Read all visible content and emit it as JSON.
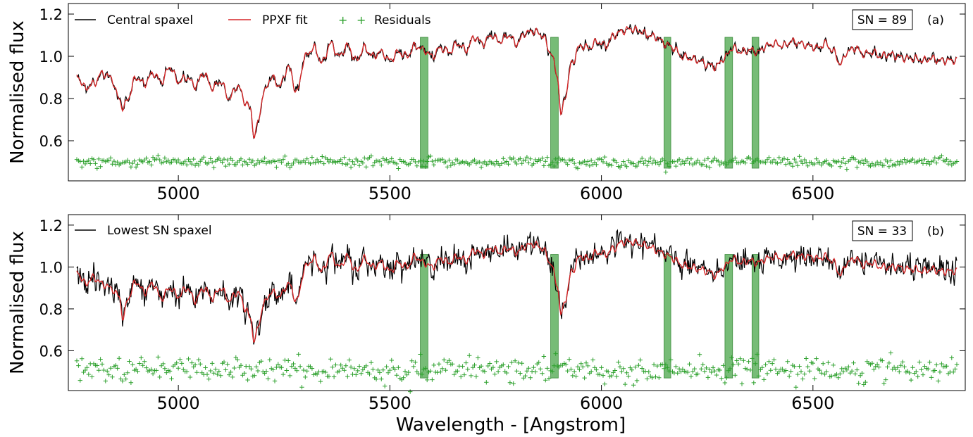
{
  "figure": {
    "xlabel": "Wavelength - [Angstrom]"
  },
  "colors": {
    "spectrum": "#000000",
    "fit": "#d62728",
    "residuals": "#2ca02c",
    "masked_band": "#4aa54a"
  },
  "chart_data": [
    {
      "type": "line",
      "panel_label": "(a)",
      "sn_label": "SN = 89",
      "ylabel": "Normalised flux",
      "xlim": [
        4740,
        6860
      ],
      "ylim": [
        0.41,
        1.25
      ],
      "xticks": [
        5000,
        5500,
        6000,
        6500
      ],
      "yticks": [
        0.6,
        0.8,
        1.0,
        1.2
      ],
      "ytick_labels": [
        "0.6",
        "0.8",
        "1.0",
        "1.2"
      ],
      "legend_position": "top-left",
      "legend": [
        "Central spaxel",
        "PPXF fit",
        "Residuals"
      ],
      "x_range": [
        4760,
        6840
      ],
      "masked_regions": [
        [
          5572,
          5590
        ],
        [
          5880,
          5898
        ],
        [
          6148,
          6164
        ],
        [
          6292,
          6310
        ],
        [
          6356,
          6372
        ]
      ],
      "fit_knots": [
        [
          4760,
          0.91
        ],
        [
          4780,
          0.85
        ],
        [
          4800,
          0.87
        ],
        [
          4820,
          0.92
        ],
        [
          4840,
          0.9
        ],
        [
          4860,
          0.8
        ],
        [
          4870,
          0.75
        ],
        [
          4880,
          0.8
        ],
        [
          4900,
          0.9
        ],
        [
          4920,
          0.87
        ],
        [
          4940,
          0.92
        ],
        [
          4960,
          0.88
        ],
        [
          4980,
          0.95
        ],
        [
          5000,
          0.88
        ],
        [
          5020,
          0.9
        ],
        [
          5040,
          0.86
        ],
        [
          5060,
          0.92
        ],
        [
          5080,
          0.85
        ],
        [
          5100,
          0.88
        ],
        [
          5120,
          0.8
        ],
        [
          5140,
          0.86
        ],
        [
          5160,
          0.78
        ],
        [
          5170,
          0.75
        ],
        [
          5180,
          0.62
        ],
        [
          5190,
          0.7
        ],
        [
          5200,
          0.82
        ],
        [
          5220,
          0.9
        ],
        [
          5240,
          0.86
        ],
        [
          5260,
          0.95
        ],
        [
          5280,
          0.83
        ],
        [
          5300,
          1.0
        ],
        [
          5320,
          1.04
        ],
        [
          5340,
          0.97
        ],
        [
          5360,
          1.06
        ],
        [
          5380,
          1.0
        ],
        [
          5400,
          1.05
        ],
        [
          5420,
          0.98
        ],
        [
          5440,
          1.04
        ],
        [
          5460,
          1.0
        ],
        [
          5480,
          1.02
        ],
        [
          5500,
          0.98
        ],
        [
          5520,
          1.02
        ],
        [
          5540,
          1.0
        ],
        [
          5560,
          1.05
        ],
        [
          5580,
          1.03
        ],
        [
          5600,
          1.0
        ],
        [
          5620,
          1.04
        ],
        [
          5640,
          1.02
        ],
        [
          5660,
          1.06
        ],
        [
          5680,
          1.03
        ],
        [
          5700,
          1.09
        ],
        [
          5720,
          1.06
        ],
        [
          5740,
          1.1
        ],
        [
          5760,
          1.07
        ],
        [
          5780,
          1.1
        ],
        [
          5800,
          1.06
        ],
        [
          5820,
          1.11
        ],
        [
          5840,
          1.12
        ],
        [
          5860,
          1.1
        ],
        [
          5880,
          1.02
        ],
        [
          5895,
          0.92
        ],
        [
          5905,
          0.72
        ],
        [
          5915,
          0.82
        ],
        [
          5930,
          0.97
        ],
        [
          5950,
          1.05
        ],
        [
          5970,
          1.04
        ],
        [
          5990,
          1.07
        ],
        [
          6010,
          1.05
        ],
        [
          6030,
          1.1
        ],
        [
          6050,
          1.12
        ],
        [
          6070,
          1.13
        ],
        [
          6090,
          1.12
        ],
        [
          6110,
          1.1
        ],
        [
          6130,
          1.09
        ],
        [
          6150,
          1.06
        ],
        [
          6170,
          1.04
        ],
        [
          6190,
          1.0
        ],
        [
          6210,
          0.99
        ],
        [
          6230,
          0.98
        ],
        [
          6250,
          0.96
        ],
        [
          6270,
          0.95
        ],
        [
          6290,
          0.99
        ],
        [
          6310,
          1.04
        ],
        [
          6330,
          1.02
        ],
        [
          6350,
          1.03
        ],
        [
          6370,
          1.02
        ],
        [
          6390,
          1.05
        ],
        [
          6410,
          1.06
        ],
        [
          6430,
          1.05
        ],
        [
          6450,
          1.07
        ],
        [
          6470,
          1.06
        ],
        [
          6490,
          1.05
        ],
        [
          6510,
          1.04
        ],
        [
          6530,
          1.06
        ],
        [
          6550,
          1.02
        ],
        [
          6565,
          0.96
        ],
        [
          6580,
          1.02
        ],
        [
          6600,
          1.04
        ],
        [
          6620,
          1.01
        ],
        [
          6640,
          1.02
        ],
        [
          6660,
          1.0
        ],
        [
          6680,
          1.01
        ],
        [
          6700,
          1.0
        ],
        [
          6720,
          0.99
        ],
        [
          6740,
          0.99
        ],
        [
          6760,
          0.98
        ],
        [
          6780,
          0.99
        ],
        [
          6800,
          0.98
        ],
        [
          6820,
          0.98
        ],
        [
          6840,
          0.98
        ]
      ],
      "residual_level": 0.5,
      "residual_scatter": 0.012
    },
    {
      "type": "line",
      "panel_label": "(b)",
      "sn_label": "SN = 33",
      "ylabel": "Normalised flux",
      "xlabel": "Wavelength - [Angstrom]",
      "xlim": [
        4740,
        6860
      ],
      "ylim": [
        0.41,
        1.25
      ],
      "xticks": [
        5000,
        5500,
        6000,
        6500
      ],
      "yticks": [
        0.6,
        0.8,
        1.0,
        1.2
      ],
      "ytick_labels": [
        "0.6",
        "0.8",
        "1.0",
        "1.2"
      ],
      "legend_position": "top-left",
      "legend": [
        "Lowest SN spaxel"
      ],
      "x_range": [
        4760,
        6840
      ],
      "masked_regions": [
        [
          5572,
          5590
        ],
        [
          5880,
          5898
        ],
        [
          6148,
          6164
        ],
        [
          6292,
          6310
        ],
        [
          6356,
          6372
        ]
      ],
      "fit_knots": [
        [
          4760,
          0.98
        ],
        [
          4780,
          0.92
        ],
        [
          4800,
          0.95
        ],
        [
          4820,
          0.92
        ],
        [
          4840,
          0.9
        ],
        [
          4860,
          0.86
        ],
        [
          4870,
          0.75
        ],
        [
          4880,
          0.85
        ],
        [
          4900,
          0.93
        ],
        [
          4920,
          0.88
        ],
        [
          4940,
          0.92
        ],
        [
          4960,
          0.85
        ],
        [
          4980,
          0.9
        ],
        [
          5000,
          0.86
        ],
        [
          5020,
          0.9
        ],
        [
          5040,
          0.84
        ],
        [
          5060,
          0.9
        ],
        [
          5080,
          0.85
        ],
        [
          5100,
          0.9
        ],
        [
          5120,
          0.84
        ],
        [
          5140,
          0.88
        ],
        [
          5160,
          0.8
        ],
        [
          5170,
          0.75
        ],
        [
          5180,
          0.65
        ],
        [
          5190,
          0.72
        ],
        [
          5200,
          0.82
        ],
        [
          5220,
          0.88
        ],
        [
          5240,
          0.86
        ],
        [
          5260,
          0.92
        ],
        [
          5280,
          0.84
        ],
        [
          5300,
          1.0
        ],
        [
          5320,
          1.04
        ],
        [
          5340,
          0.98
        ],
        [
          5360,
          1.06
        ],
        [
          5380,
          1.0
        ],
        [
          5400,
          1.05
        ],
        [
          5420,
          0.98
        ],
        [
          5440,
          1.04
        ],
        [
          5460,
          1.0
        ],
        [
          5480,
          1.02
        ],
        [
          5500,
          0.98
        ],
        [
          5520,
          1.02
        ],
        [
          5540,
          1.0
        ],
        [
          5560,
          1.05
        ],
        [
          5580,
          1.02
        ],
        [
          5600,
          1.0
        ],
        [
          5620,
          1.04
        ],
        [
          5640,
          1.02
        ],
        [
          5660,
          1.05
        ],
        [
          5680,
          1.03
        ],
        [
          5700,
          1.08
        ],
        [
          5720,
          1.06
        ],
        [
          5740,
          1.09
        ],
        [
          5760,
          1.07
        ],
        [
          5780,
          1.09
        ],
        [
          5800,
          1.07
        ],
        [
          5820,
          1.1
        ],
        [
          5840,
          1.11
        ],
        [
          5860,
          1.09
        ],
        [
          5880,
          1.02
        ],
        [
          5895,
          0.92
        ],
        [
          5905,
          0.77
        ],
        [
          5915,
          0.85
        ],
        [
          5930,
          0.98
        ],
        [
          5950,
          1.05
        ],
        [
          5970,
          1.04
        ],
        [
          5990,
          1.07
        ],
        [
          6010,
          1.06
        ],
        [
          6030,
          1.09
        ],
        [
          6050,
          1.12
        ],
        [
          6070,
          1.12
        ],
        [
          6090,
          1.11
        ],
        [
          6110,
          1.1
        ],
        [
          6130,
          1.08
        ],
        [
          6150,
          1.06
        ],
        [
          6170,
          1.04
        ],
        [
          6190,
          1.01
        ],
        [
          6210,
          1.0
        ],
        [
          6230,
          0.99
        ],
        [
          6250,
          0.98
        ],
        [
          6270,
          0.96
        ],
        [
          6290,
          1.0
        ],
        [
          6310,
          1.04
        ],
        [
          6330,
          1.02
        ],
        [
          6350,
          1.03
        ],
        [
          6370,
          1.02
        ],
        [
          6390,
          1.04
        ],
        [
          6410,
          1.05
        ],
        [
          6430,
          1.04
        ],
        [
          6450,
          1.06
        ],
        [
          6470,
          1.05
        ],
        [
          6490,
          1.05
        ],
        [
          6510,
          1.04
        ],
        [
          6530,
          1.05
        ],
        [
          6550,
          1.02
        ],
        [
          6565,
          0.96
        ],
        [
          6580,
          1.02
        ],
        [
          6600,
          1.04
        ],
        [
          6620,
          1.01
        ],
        [
          6640,
          1.02
        ],
        [
          6660,
          1.0
        ],
        [
          6680,
          1.0
        ],
        [
          6700,
          1.0
        ],
        [
          6720,
          0.99
        ],
        [
          6740,
          0.99
        ],
        [
          6760,
          0.98
        ],
        [
          6780,
          0.99
        ],
        [
          6800,
          0.98
        ],
        [
          6820,
          0.98
        ],
        [
          6840,
          0.98
        ]
      ],
      "residual_level": 0.51,
      "residual_scatter": 0.028
    }
  ]
}
